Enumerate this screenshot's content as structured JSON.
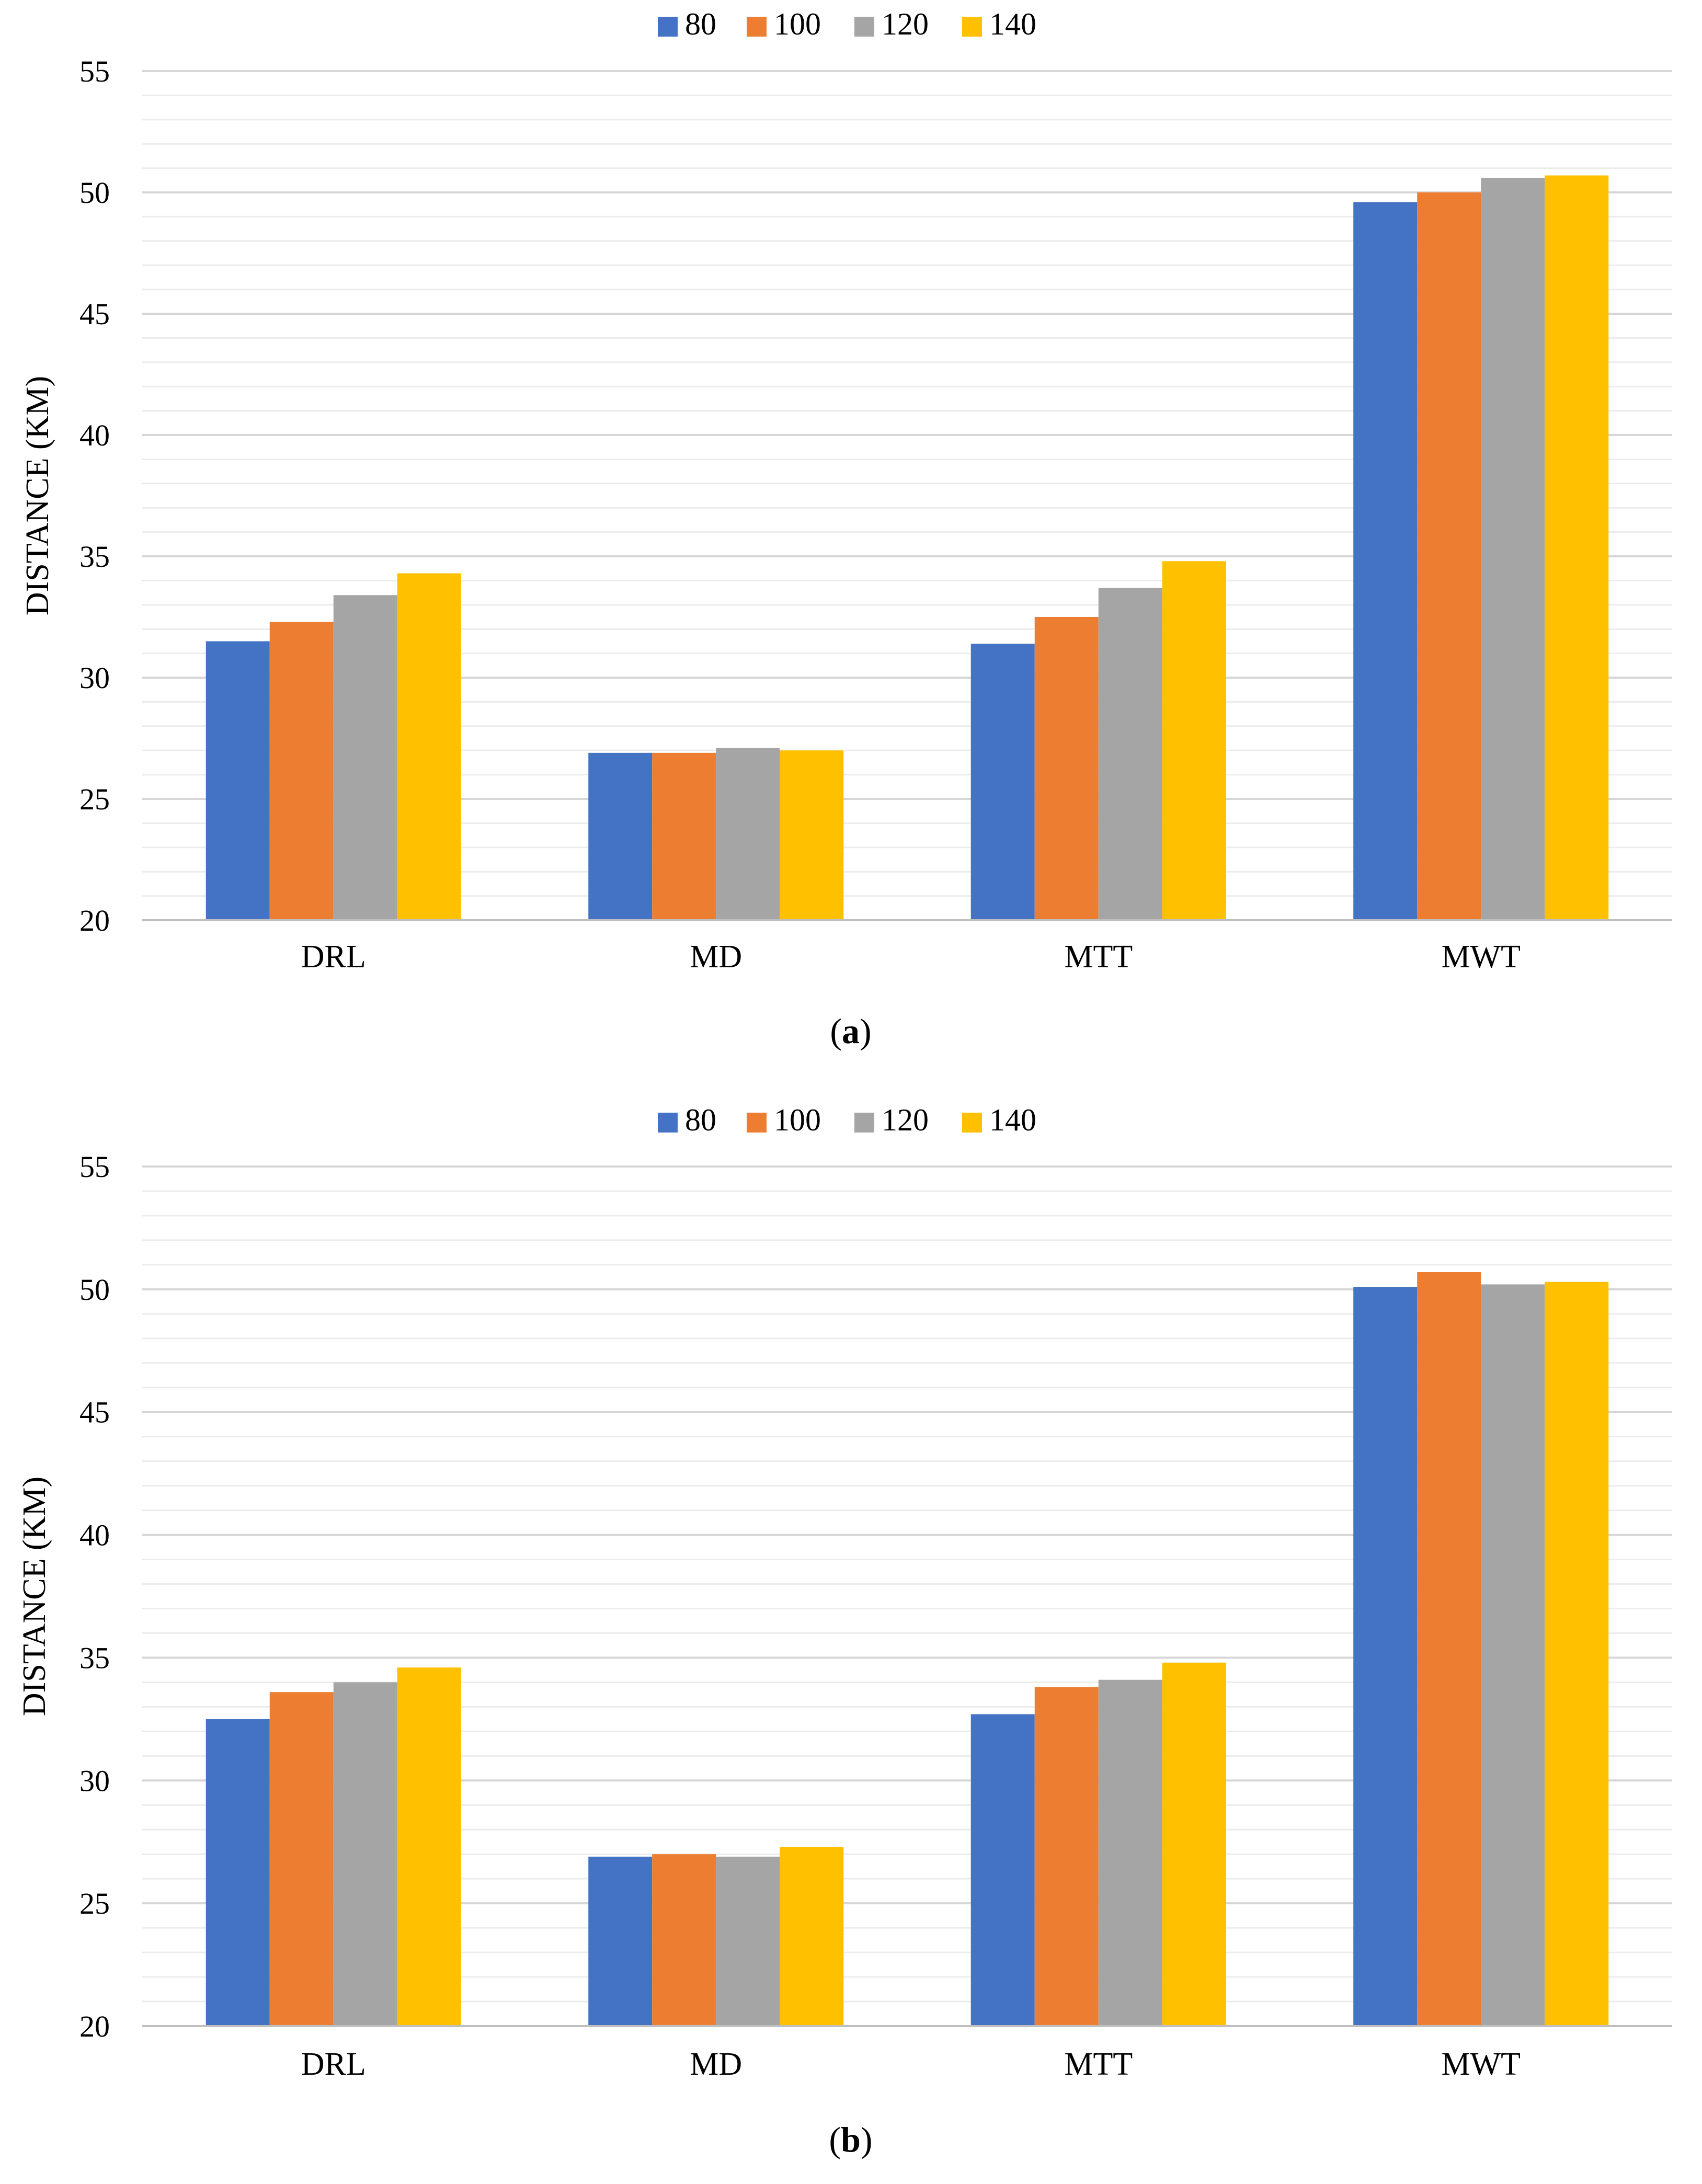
{
  "chart_data": [
    {
      "type": "bar",
      "panel_label": "a",
      "caption_open": "(",
      "caption_close": ")",
      "categories": [
        "DRL",
        "MD",
        "MTT",
        "MWT"
      ],
      "series": [
        {
          "name": "80",
          "color": "#4472C4",
          "values": [
            31.5,
            26.9,
            31.4,
            49.6
          ]
        },
        {
          "name": "100",
          "color": "#ED7D31",
          "values": [
            32.3,
            26.9,
            32.5,
            50.0
          ]
        },
        {
          "name": "120",
          "color": "#A5A5A5",
          "values": [
            33.4,
            27.1,
            33.7,
            50.6
          ]
        },
        {
          "name": "140",
          "color": "#FFC000",
          "values": [
            34.3,
            27.0,
            34.8,
            50.7
          ]
        }
      ],
      "ylabel": "DISTANCE (KM)",
      "xlabel": "",
      "ylim": [
        20,
        55
      ],
      "yticks": [
        "20",
        "25",
        "30",
        "35",
        "40",
        "45",
        "50",
        "55"
      ],
      "minor_step": 1,
      "legend": "top-center",
      "grid": true
    },
    {
      "type": "bar",
      "panel_label": "b",
      "caption_open": "(",
      "caption_close": ")",
      "categories": [
        "DRL",
        "MD",
        "MTT",
        "MWT"
      ],
      "series": [
        {
          "name": "80",
          "color": "#4472C4",
          "values": [
            32.5,
            26.9,
            32.7,
            50.1
          ]
        },
        {
          "name": "100",
          "color": "#ED7D31",
          "values": [
            33.6,
            27.0,
            33.8,
            50.7
          ]
        },
        {
          "name": "120",
          "color": "#A5A5A5",
          "values": [
            34.0,
            26.9,
            34.1,
            50.2
          ]
        },
        {
          "name": "140",
          "color": "#FFC000",
          "values": [
            34.6,
            27.3,
            34.8,
            50.3
          ]
        }
      ],
      "ylabel": "DISTANCE (KM)",
      "xlabel": "",
      "ylim": [
        20,
        55
      ],
      "yticks": [
        "20",
        "25",
        "30",
        "35",
        "40",
        "45",
        "50",
        "55"
      ],
      "minor_step": 1,
      "legend": "top-center",
      "grid": true
    }
  ]
}
